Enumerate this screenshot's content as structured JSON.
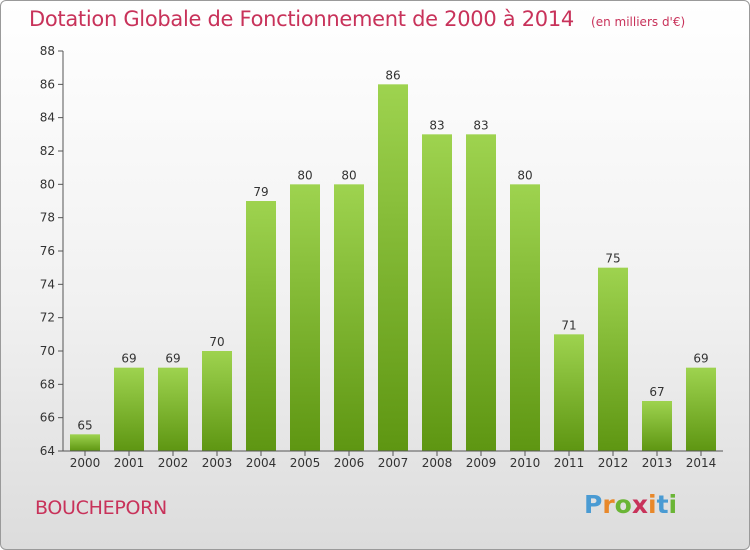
{
  "header": {
    "title": "Dotation Globale de Fonctionnement de 2000 à 2014",
    "unit": "(en milliers d'€)"
  },
  "footer": {
    "commune": "BOUCHEPORN",
    "brand": "Proxiti"
  },
  "colors": {
    "title": "#c8325a",
    "bar_top": "#9ed34f",
    "bar_bottom": "#5e9612",
    "brand_letters": [
      "#4a9bd3",
      "#e8882a",
      "#6ab536",
      "#c8325a",
      "#e8882a",
      "#4a9bd3",
      "#6ab536"
    ]
  },
  "chart_data": {
    "type": "bar",
    "title": "Dotation Globale de Fonctionnement de 2000 à 2014",
    "categories": [
      "2000",
      "2001",
      "2002",
      "2003",
      "2004",
      "2005",
      "2006",
      "2007",
      "2008",
      "2009",
      "2010",
      "2011",
      "2012",
      "2013",
      "2014"
    ],
    "values": [
      65,
      69,
      69,
      70,
      79,
      80,
      80,
      86,
      83,
      83,
      80,
      71,
      75,
      67,
      69
    ],
    "data_labels": [
      "65",
      "69",
      "69",
      "70",
      "79",
      "80",
      "80",
      "86",
      "83",
      "83",
      "80",
      "71",
      "75",
      "67",
      "69"
    ],
    "ylim": [
      64,
      88
    ],
    "yticks": [
      64,
      66,
      68,
      70,
      72,
      74,
      76,
      78,
      80,
      82,
      84,
      86,
      88
    ],
    "grid": false,
    "legend": "none"
  }
}
